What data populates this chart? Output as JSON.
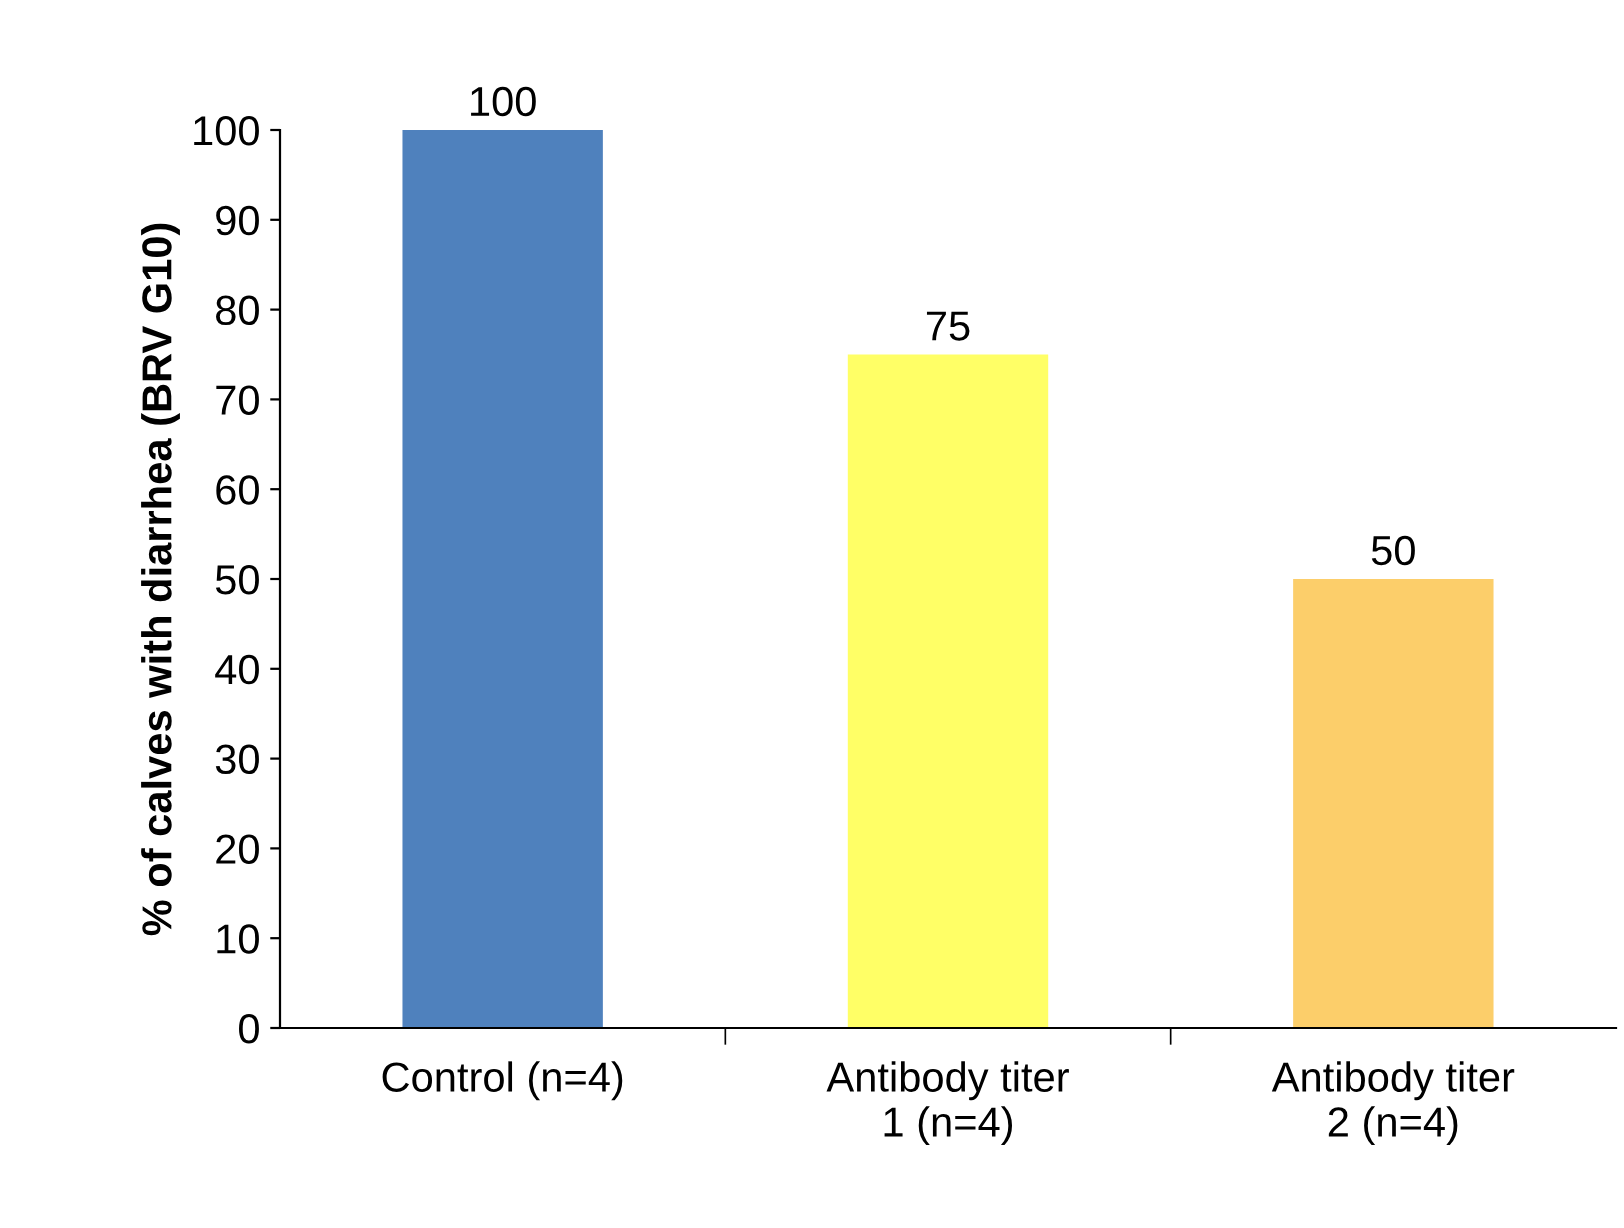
{
  "chart_data": {
    "type": "bar",
    "ylabel": "% of calves with diarrhea (BRV G10)",
    "categories": [
      "Control (n=4)",
      "Antibody titer\n1 (n=4)",
      "Antibody titer\n2 (n=4)"
    ],
    "values": [
      100,
      75,
      50
    ],
    "colors": [
      "#4f81bd",
      "#ffff66",
      "#fcce6a"
    ],
    "ylim": [
      0,
      100
    ],
    "yticks": [
      0,
      10,
      20,
      30,
      40,
      50,
      60,
      70,
      80,
      90,
      100
    ],
    "data_labels": true,
    "grid": false,
    "legend": false
  }
}
